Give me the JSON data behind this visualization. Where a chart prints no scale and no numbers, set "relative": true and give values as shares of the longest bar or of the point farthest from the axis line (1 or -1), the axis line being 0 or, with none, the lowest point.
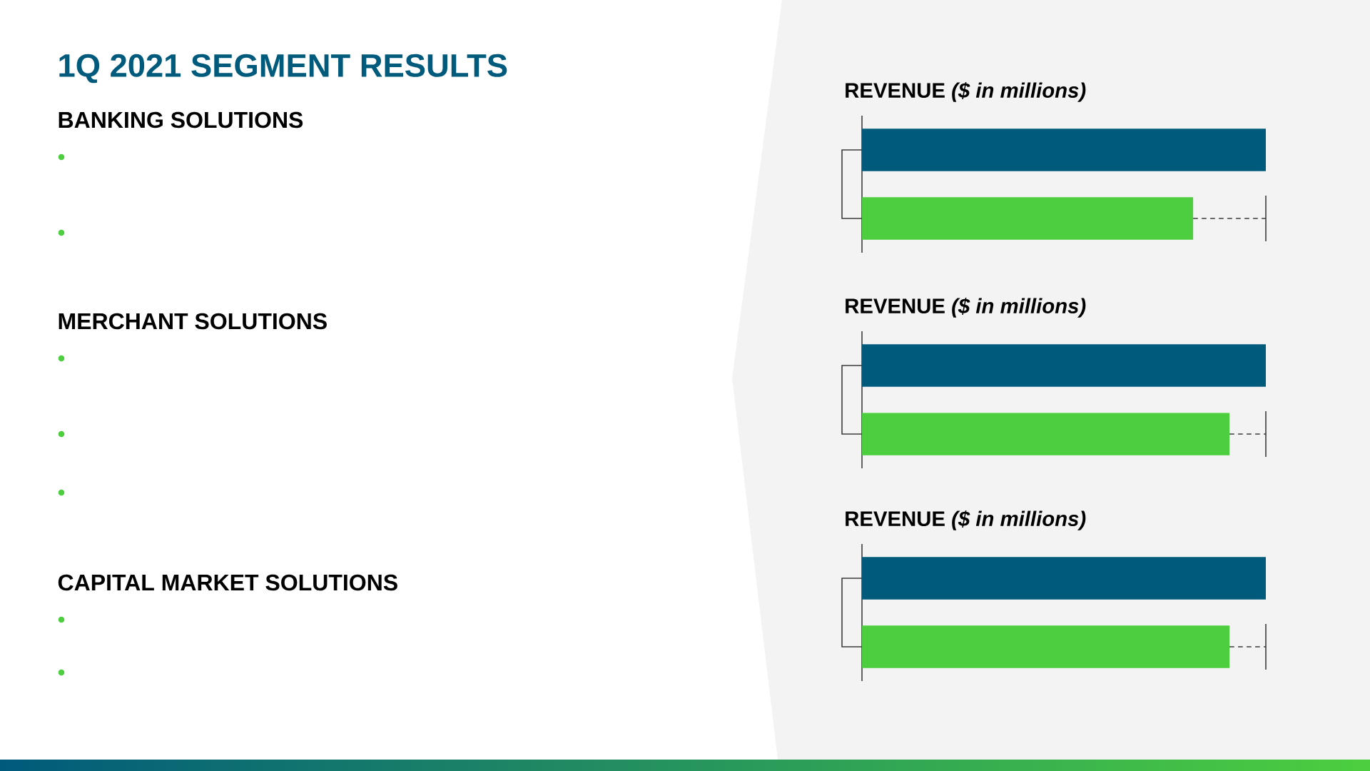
{
  "chart_data": [
    {
      "type": "other",
      "title": "1Q 2021 SEGMENT RESULTS",
      "annotations": [
        "BANKING SOLUTIONS",
        "MERCHANT SOLUTIONS",
        "CAPITAL MARKET SOLUTIONS"
      ]
    },
    {
      "type": "bar",
      "orientation": "horizontal",
      "relative": true,
      "title": "REVENUE *($ in millions)*",
      "categories": [
        null,
        null
      ],
      "values": [
        1,
        0.82
      ],
      "colors": [
        "#005a7c",
        "#4cce3f"
      ]
    },
    {
      "type": "bar",
      "orientation": "horizontal",
      "relative": true,
      "title": "REVENUE *($ in millions)*",
      "categories": [
        null,
        null
      ],
      "values": [
        1,
        0.91
      ],
      "colors": [
        "#005a7c",
        "#4cce3f"
      ]
    },
    {
      "type": "bar",
      "orientation": "horizontal",
      "relative": true,
      "title": "REVENUE *($ in millions)*",
      "categories": [
        null,
        null
      ],
      "values": [
        1,
        0.91
      ],
      "colors": [
        "#005a7c",
        "#4cce3f"
      ]
    }
  ]
}
